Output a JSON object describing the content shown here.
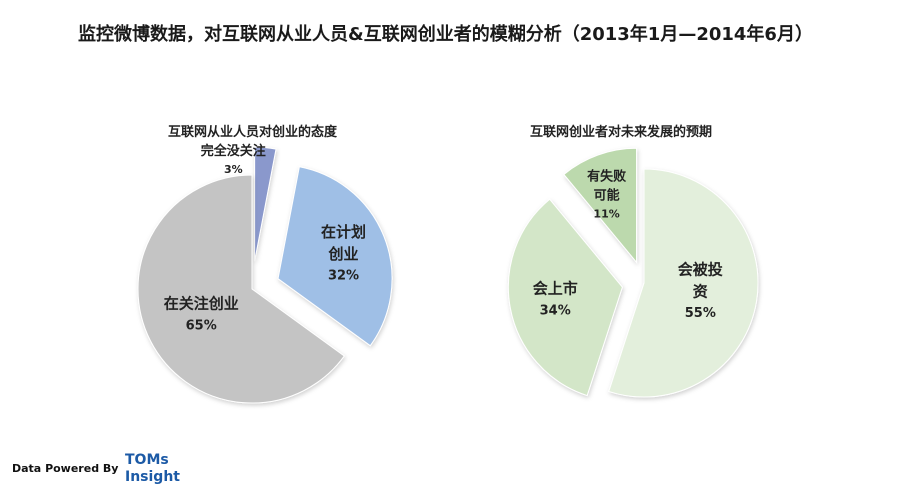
{
  "page": {
    "title": "监控微博数据，对互联网从业人员&互联网创业者的模糊分析（2013年1月—2014年6月）"
  },
  "footer": {
    "powered_by": "Data Powered By",
    "logo_line1": "TOMs",
    "logo_line2": "Insight"
  },
  "chart_data": [
    {
      "type": "pie",
      "title": "互联网从业人员对创业的态度",
      "slices": [
        {
          "label_lines": [
            "完全没关注"
          ],
          "value": 3,
          "value_text": "3%",
          "color": "#8a98cc",
          "exploded": true
        },
        {
          "label_lines": [
            "在计划",
            "创业"
          ],
          "value": 32,
          "value_text": "32%",
          "color": "#9fbfe6",
          "exploded": true
        },
        {
          "label_lines": [
            "在关注创业"
          ],
          "value": 65,
          "value_text": "65%",
          "color": "#c4c4c4",
          "exploded": false
        }
      ]
    },
    {
      "type": "pie",
      "title": "互联网创业者对未来发展的预期",
      "slices": [
        {
          "label_lines": [
            "会被投",
            "资"
          ],
          "value": 55,
          "value_text": "55%",
          "color": "#e3efdc",
          "exploded": false
        },
        {
          "label_lines": [
            "会上市"
          ],
          "value": 34,
          "value_text": "34%",
          "color": "#d3e6c8",
          "exploded": true
        },
        {
          "label_lines": [
            "有失败",
            "可能"
          ],
          "value": 11,
          "value_text": "11%",
          "color": "#bcd9ad",
          "exploded": true
        }
      ]
    }
  ]
}
